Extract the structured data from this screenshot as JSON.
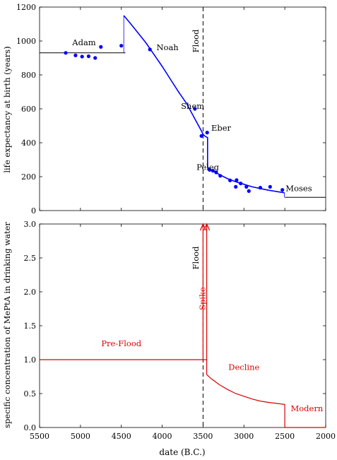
{
  "chart_data": [
    {
      "type": "line",
      "ylabel": "life expectancy at birth (years)",
      "xlim": [
        5500,
        2000
      ],
      "ylim": [
        0,
        1200
      ],
      "yticks": [
        "0",
        "200",
        "400",
        "600",
        "800",
        "1000",
        "1200"
      ],
      "grid": false,
      "colors": {
        "model": "#0000ff",
        "points": "#0000ff",
        "baseline": "#000000",
        "flood_line": "#000000"
      },
      "baseline_segments": [
        {
          "x": [
            5500,
            4450
          ],
          "y": [
            930,
            930
          ]
        },
        {
          "x": [
            2500,
            2000
          ],
          "y": [
            78,
            78
          ]
        }
      ],
      "series": [
        {
          "points": [
            [
              4470,
              1150
            ],
            [
              4400,
              1110
            ],
            [
              4300,
              1050
            ],
            [
              4200,
              990
            ],
            [
              4100,
              920
            ],
            [
              4000,
              850
            ],
            [
              3900,
              775
            ],
            [
              3800,
              700
            ],
            [
              3700,
              630
            ],
            [
              3600,
              540
            ],
            [
              3520,
              470
            ],
            [
              3500,
              450
            ],
            [
              3480,
              440
            ],
            [
              3445,
              430
            ],
            [
              3445,
              255
            ],
            [
              3400,
              240
            ],
            [
              3300,
              212
            ],
            [
              3200,
              188
            ],
            [
              3100,
              170
            ],
            [
              3000,
              155
            ],
            [
              2900,
              140
            ],
            [
              2800,
              130
            ],
            [
              2700,
              120
            ],
            [
              2600,
              112
            ],
            [
              2505,
              105
            ]
          ]
        }
      ],
      "points": [
        [
          5180,
          930
        ],
        [
          5060,
          915
        ],
        [
          4980,
          908
        ],
        [
          4900,
          910
        ],
        [
          4820,
          900
        ],
        [
          4750,
          965
        ],
        [
          4500,
          972
        ],
        [
          4150,
          950
        ],
        [
          3600,
          600
        ],
        [
          3520,
          440
        ],
        [
          3450,
          460
        ],
        [
          3420,
          240
        ],
        [
          3380,
          235
        ],
        [
          3340,
          225
        ],
        [
          3290,
          205
        ],
        [
          3170,
          178
        ],
        [
          3100,
          140
        ],
        [
          3090,
          180
        ],
        [
          3040,
          160
        ],
        [
          2970,
          140
        ],
        [
          2940,
          115
        ],
        [
          2800,
          135
        ],
        [
          2680,
          140
        ],
        [
          2530,
          122
        ]
      ],
      "annotations": [
        {
          "text": "Adam",
          "x": 5100,
          "y": 975
        },
        {
          "text": "Noah",
          "x": 4070,
          "y": 945
        },
        {
          "text": "Shem",
          "x": 3770,
          "y": 600
        },
        {
          "text": "Eber",
          "x": 3400,
          "y": 470
        },
        {
          "text": "Peleg",
          "x": 3580,
          "y": 240
        },
        {
          "text": "Moses",
          "x": 2490,
          "y": 115
        },
        {
          "text": "Flood",
          "x": 3555,
          "y": 1000
        }
      ],
      "flood_x": 3500
    },
    {
      "type": "line",
      "xlabel": "date (B.C.)",
      "ylabel": "specific concentration of MePtA in drinking water",
      "xlim": [
        5500,
        2000
      ],
      "ylim": [
        0,
        3.0
      ],
      "xticks": [
        "5500",
        "5000",
        "4500",
        "4000",
        "3500",
        "3000",
        "2500",
        "2000"
      ],
      "yticks": [
        "0.0",
        "0.5",
        "1.0",
        "1.5",
        "2.0",
        "2.5",
        "3.0"
      ],
      "grid": false,
      "colors": {
        "line": "#dd0000",
        "labels": "#dd0000",
        "flood_line": "#000000"
      },
      "series": [
        {
          "points": [
            [
              5500,
              1.0
            ],
            [
              3500,
              1.0
            ],
            [
              3500,
              3.0
            ],
            [
              3500,
              1.0
            ],
            [
              3455,
              1.0
            ],
            [
              3455,
              3.0
            ],
            [
              3455,
              0.78
            ],
            [
              3400,
              0.72
            ],
            [
              3300,
              0.63
            ],
            [
              3200,
              0.56
            ],
            [
              3100,
              0.5
            ],
            [
              3000,
              0.46
            ],
            [
              2900,
              0.42
            ],
            [
              2800,
              0.39
            ],
            [
              2700,
              0.37
            ],
            [
              2600,
              0.355
            ],
            [
              2500,
              0.34
            ],
            [
              2500,
              0.0
            ],
            [
              2000,
              0.0
            ]
          ]
        }
      ],
      "annotations": [
        {
          "text": "Pre-Flood",
          "x": 4500,
          "y": 1.2
        },
        {
          "text": "Spike",
          "x": 3475,
          "y": 1.9
        },
        {
          "text": "Decline",
          "x": 3000,
          "y": 0.85
        },
        {
          "text": "Modern",
          "x": 2230,
          "y": 0.24
        },
        {
          "text": "Flood",
          "x": 3555,
          "y": 2.5
        }
      ],
      "flood_x": 3500
    }
  ]
}
